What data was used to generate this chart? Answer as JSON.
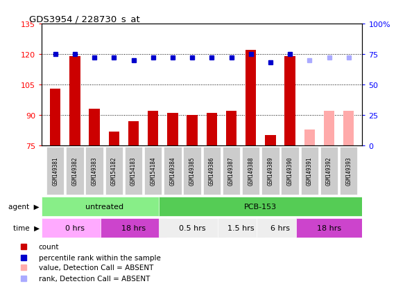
{
  "title": "GDS3954 / 228730_s_at",
  "samples": [
    "GSM149381",
    "GSM149382",
    "GSM149383",
    "GSM154182",
    "GSM154183",
    "GSM154184",
    "GSM149384",
    "GSM149385",
    "GSM149386",
    "GSM149387",
    "GSM149388",
    "GSM149389",
    "GSM149390",
    "GSM149391",
    "GSM149392",
    "GSM149393"
  ],
  "bar_values": [
    103,
    119,
    93,
    82,
    87,
    92,
    91,
    90,
    91,
    92,
    122,
    80,
    119,
    null,
    null,
    null
  ],
  "bar_absent_values": [
    null,
    null,
    null,
    null,
    null,
    null,
    null,
    null,
    null,
    null,
    null,
    null,
    null,
    83,
    92,
    92
  ],
  "bar_colors_present": "#cc0000",
  "bar_colors_absent": "#ffaaaa",
  "rank_values": [
    75,
    75,
    72,
    72,
    70,
    72,
    72,
    72,
    72,
    72,
    75,
    68,
    75,
    null,
    null,
    null
  ],
  "rank_absent_values": [
    null,
    null,
    null,
    null,
    null,
    null,
    null,
    null,
    null,
    null,
    null,
    null,
    null,
    70,
    72,
    72
  ],
  "rank_color_present": "#0000cc",
  "rank_color_absent": "#aaaaff",
  "ylim_left": [
    75,
    135
  ],
  "ylim_right": [
    0,
    100
  ],
  "yticks_left": [
    75,
    90,
    105,
    120,
    135
  ],
  "yticks_right": [
    0,
    25,
    50,
    75,
    100
  ],
  "ytick_labels_right": [
    "0",
    "25",
    "50",
    "75",
    "100%"
  ],
  "agent_groups": [
    {
      "label": "untreated",
      "start": 0,
      "end": 6,
      "color": "#88ee88"
    },
    {
      "label": "PCB-153",
      "start": 6,
      "end": 16,
      "color": "#55cc55"
    }
  ],
  "time_groups": [
    {
      "label": "0 hrs",
      "start": 0,
      "end": 3,
      "color": "#ffaaff"
    },
    {
      "label": "18 hrs",
      "start": 3,
      "end": 6,
      "color": "#cc44cc"
    },
    {
      "label": "0.5 hrs",
      "start": 6,
      "end": 9,
      "color": "#eeeeee"
    },
    {
      "label": "1.5 hrs",
      "start": 9,
      "end": 11,
      "color": "#eeeeee"
    },
    {
      "label": "6 hrs",
      "start": 11,
      "end": 13,
      "color": "#eeeeee"
    },
    {
      "label": "18 hrs",
      "start": 13,
      "end": 16,
      "color": "#cc44cc"
    }
  ],
  "legend_items": [
    {
      "label": "count",
      "color": "#cc0000"
    },
    {
      "label": "percentile rank within the sample",
      "color": "#0000cc"
    },
    {
      "label": "value, Detection Call = ABSENT",
      "color": "#ffaaaa"
    },
    {
      "label": "rank, Detection Call = ABSENT",
      "color": "#aaaaff"
    }
  ],
  "background_color": "#ffffff",
  "label_bg_color": "#cccccc"
}
